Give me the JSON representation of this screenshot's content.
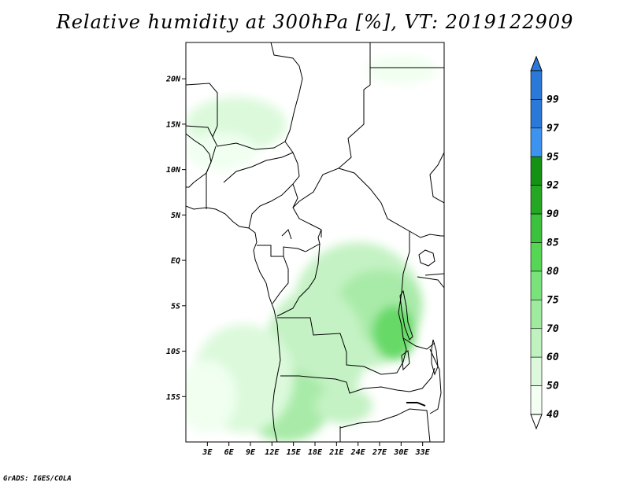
{
  "title": "Relative humidity at 300hPa [%], VT: 2019122909",
  "footer": "GrADS: IGES/COLA",
  "map": {
    "lon_range": [
      0,
      36
    ],
    "lat_range": [
      -20,
      24
    ],
    "lat_ticks": [
      {
        "value": 20,
        "label": "20N"
      },
      {
        "value": 15,
        "label": "15N"
      },
      {
        "value": 10,
        "label": "10N"
      },
      {
        "value": 5,
        "label": "5N"
      },
      {
        "value": 0,
        "label": "EQ"
      },
      {
        "value": -5,
        "label": "5S"
      },
      {
        "value": -10,
        "label": "10S"
      },
      {
        "value": -15,
        "label": "15S"
      }
    ],
    "lon_ticks": [
      {
        "value": 3,
        "label": "3E"
      },
      {
        "value": 6,
        "label": "6E"
      },
      {
        "value": 9,
        "label": "9E"
      },
      {
        "value": 12,
        "label": "12E"
      },
      {
        "value": 15,
        "label": "15E"
      },
      {
        "value": 18,
        "label": "18E"
      },
      {
        "value": 21,
        "label": "21E"
      },
      {
        "value": 24,
        "label": "24E"
      },
      {
        "value": 27,
        "label": "27E"
      },
      {
        "value": 30,
        "label": "30E"
      },
      {
        "value": 33,
        "label": "33E"
      }
    ]
  },
  "colors": {
    "c40": "#f0fff0",
    "c50": "#dcf9dc",
    "c60": "#c4f2c4",
    "c70": "#a8eaa8",
    "c75": "#8ee38e",
    "c80": "#66d966",
    "c85": "#45cc45",
    "c90": "#2bb52b",
    "c92": "#1d9e1d",
    "c95": "#1580eb",
    "c97": "#3d9cf5",
    "c99": "#1e6fd8"
  },
  "legend": {
    "levels": [
      {
        "label": "99",
        "color": "#2a79d9"
      },
      {
        "label": "97",
        "color": "#2a79d9"
      },
      {
        "label": "95",
        "color": "#3d93f0"
      },
      {
        "label": "92",
        "color": "#139213"
      },
      {
        "label": "90",
        "color": "#24a824"
      },
      {
        "label": "85",
        "color": "#3cc13c"
      },
      {
        "label": "80",
        "color": "#55d655"
      },
      {
        "label": "75",
        "color": "#7ae27a"
      },
      {
        "label": "70",
        "color": "#9eea9e"
      },
      {
        "label": "60",
        "color": "#bff2bf"
      },
      {
        "label": "50",
        "color": "#dcf9dc"
      },
      {
        "label": "40",
        "color": "#f2fff2"
      }
    ],
    "top_color": "#2a79d9",
    "bottom_color": "#ffffff"
  },
  "humidity_regions": [
    {
      "lon": 24,
      "lat": -5,
      "rx": 9,
      "ry": 7,
      "level": "c60"
    },
    {
      "lon": 27,
      "lat": -5,
      "rx": 6,
      "ry": 4,
      "level": "c70"
    },
    {
      "lon": 29,
      "lat": -8,
      "rx": 3,
      "ry": 3,
      "level": "c80"
    },
    {
      "lon": 18,
      "lat": -10,
      "rx": 7,
      "ry": 7,
      "level": "c60"
    },
    {
      "lon": 14,
      "lat": -16,
      "rx": 6,
      "ry": 4,
      "level": "c70"
    },
    {
      "lon": 8,
      "lat": -13,
      "rx": 7,
      "ry": 6,
      "level": "c50"
    },
    {
      "lon": 3,
      "lat": -15,
      "rx": 4,
      "ry": 4,
      "level": "c40"
    },
    {
      "lon": 7,
      "lat": 15,
      "rx": 7,
      "ry": 3,
      "level": "c50"
    },
    {
      "lon": 5,
      "lat": 12,
      "rx": 5,
      "ry": 2,
      "level": "c40"
    },
    {
      "lon": 30,
      "lat": 21,
      "rx": 5,
      "ry": 1.5,
      "level": "c40"
    },
    {
      "lon": 22,
      "lat": -16,
      "rx": 4,
      "ry": 2,
      "level": "c60"
    }
  ]
}
